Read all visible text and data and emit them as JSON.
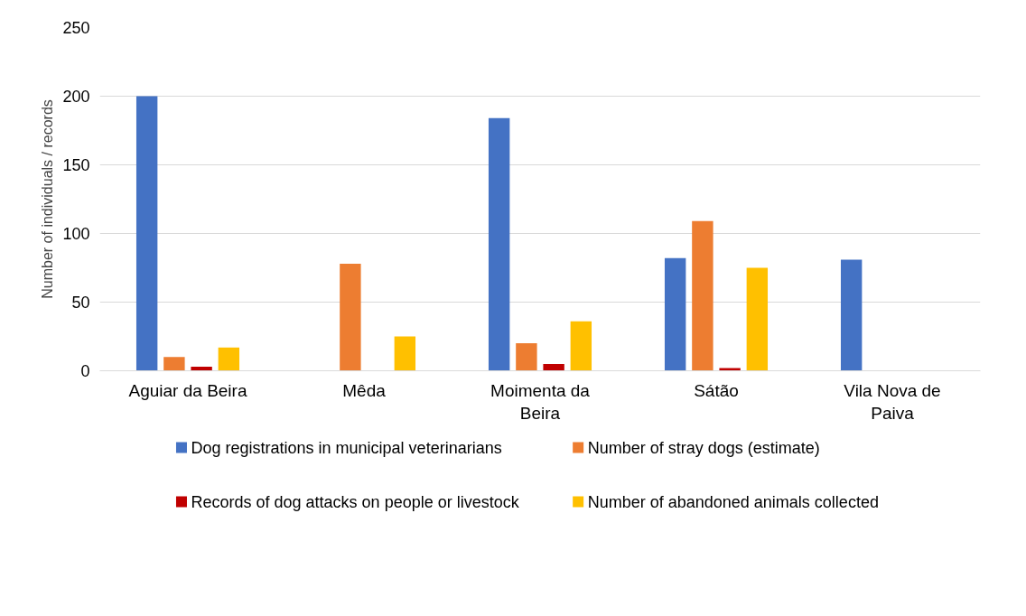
{
  "chart_data": {
    "type": "bar",
    "ylabel": "Number of individuals / records",
    "categories": [
      "Aguiar da Beira",
      "Mêda",
      "Moimenta da Beira",
      "Sátão",
      "Vila Nova de Paiva"
    ],
    "series": [
      {
        "name": "Dog registrations in municipal veterinarians",
        "color": "#4472c4",
        "values": [
          200,
          null,
          184,
          82,
          81
        ]
      },
      {
        "name": "Number of stray dogs (estimate)",
        "color": "#ed7d31",
        "values": [
          10,
          78,
          20,
          109,
          null
        ]
      },
      {
        "name": "Records of dog attacks on people or livestock",
        "color": "#c00000",
        "values": [
          3,
          null,
          5,
          2,
          null
        ]
      },
      {
        "name": "Number of abandoned animals collected",
        "color": "#ffc000",
        "values": [
          17,
          25,
          36,
          75,
          null
        ]
      }
    ],
    "ylim": [
      0,
      250
    ],
    "yticks": [
      0,
      50,
      100,
      150,
      200,
      250
    ],
    "grid": "y",
    "legend": "bottom"
  }
}
